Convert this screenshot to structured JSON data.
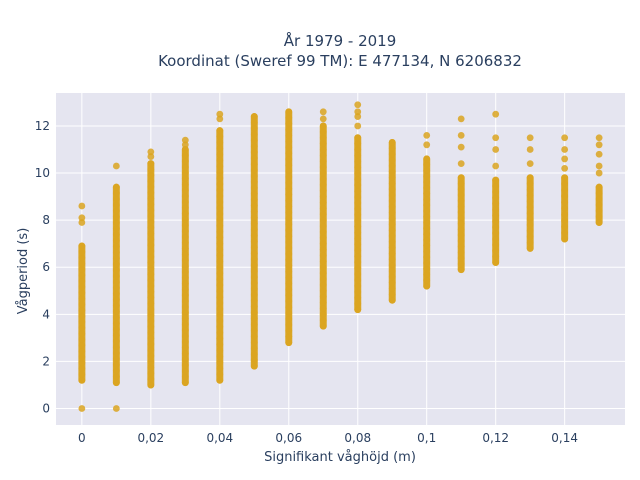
{
  "chart_data": {
    "type": "scatter",
    "title_line1": "År 1979 - 2019",
    "title_line2": "Koordinat (Sweref 99 TM): E 477134, N 6206832",
    "xlabel": "Signifikant våghöjd (m)",
    "ylabel": "Vågperiod (s)",
    "xlim": [
      -0.0075,
      0.1575
    ],
    "ylim": [
      -0.7,
      13.4
    ],
    "xticks": [
      0,
      0.02,
      0.04,
      0.06,
      0.08,
      0.1,
      0.12,
      0.14
    ],
    "xtick_labels": [
      "0",
      "0,02",
      "0,04",
      "0,06",
      "0,08",
      "0,1",
      "0,12",
      "0,14"
    ],
    "yticks": [
      0,
      2,
      4,
      6,
      8,
      10,
      12
    ],
    "ytick_labels": [
      "0",
      "2",
      "4",
      "6",
      "8",
      "10",
      "12"
    ],
    "grid": true,
    "background": "#e5e5f0",
    "marker_color": "#daa520",
    "columns": [
      {
        "x": 0.0,
        "y_min": 1.2,
        "y_max": 6.9,
        "outliers": [
          0,
          7.9,
          8.1,
          8.6
        ]
      },
      {
        "x": 0.01,
        "y_min": 1.1,
        "y_max": 9.4,
        "outliers": [
          0,
          10.3
        ]
      },
      {
        "x": 0.02,
        "y_min": 1.0,
        "y_max": 10.4,
        "outliers": [
          10.7,
          10.9
        ]
      },
      {
        "x": 0.03,
        "y_min": 1.1,
        "y_max": 11.0,
        "outliers": [
          11.2,
          11.4
        ]
      },
      {
        "x": 0.04,
        "y_min": 1.2,
        "y_max": 11.8,
        "outliers": [
          12.3,
          12.5
        ]
      },
      {
        "x": 0.05,
        "y_min": 1.8,
        "y_max": 12.4,
        "outliers": []
      },
      {
        "x": 0.06,
        "y_min": 2.8,
        "y_max": 12.6,
        "outliers": []
      },
      {
        "x": 0.07,
        "y_min": 3.5,
        "y_max": 12.0,
        "outliers": [
          12.3,
          12.6
        ]
      },
      {
        "x": 0.08,
        "y_min": 4.2,
        "y_max": 11.5,
        "outliers": [
          12.0,
          12.4,
          12.6,
          12.9
        ]
      },
      {
        "x": 0.09,
        "y_min": 4.6,
        "y_max": 11.3,
        "outliers": []
      },
      {
        "x": 0.1,
        "y_min": 5.2,
        "y_max": 10.6,
        "outliers": [
          11.2,
          11.6
        ]
      },
      {
        "x": 0.11,
        "y_min": 5.9,
        "y_max": 9.8,
        "outliers": [
          10.4,
          11.1,
          11.6,
          12.3
        ]
      },
      {
        "x": 0.12,
        "y_min": 6.2,
        "y_max": 9.7,
        "outliers": [
          10.3,
          11.0,
          11.5,
          12.5
        ]
      },
      {
        "x": 0.13,
        "y_min": 6.8,
        "y_max": 9.8,
        "outliers": [
          10.4,
          11.0,
          11.5
        ]
      },
      {
        "x": 0.14,
        "y_min": 7.2,
        "y_max": 9.8,
        "outliers": [
          10.2,
          10.6,
          11.0,
          11.5
        ]
      },
      {
        "x": 0.15,
        "y_min": 7.9,
        "y_max": 9.4,
        "outliers": [
          10.0,
          10.3,
          10.8,
          11.2,
          11.5
        ]
      }
    ]
  }
}
